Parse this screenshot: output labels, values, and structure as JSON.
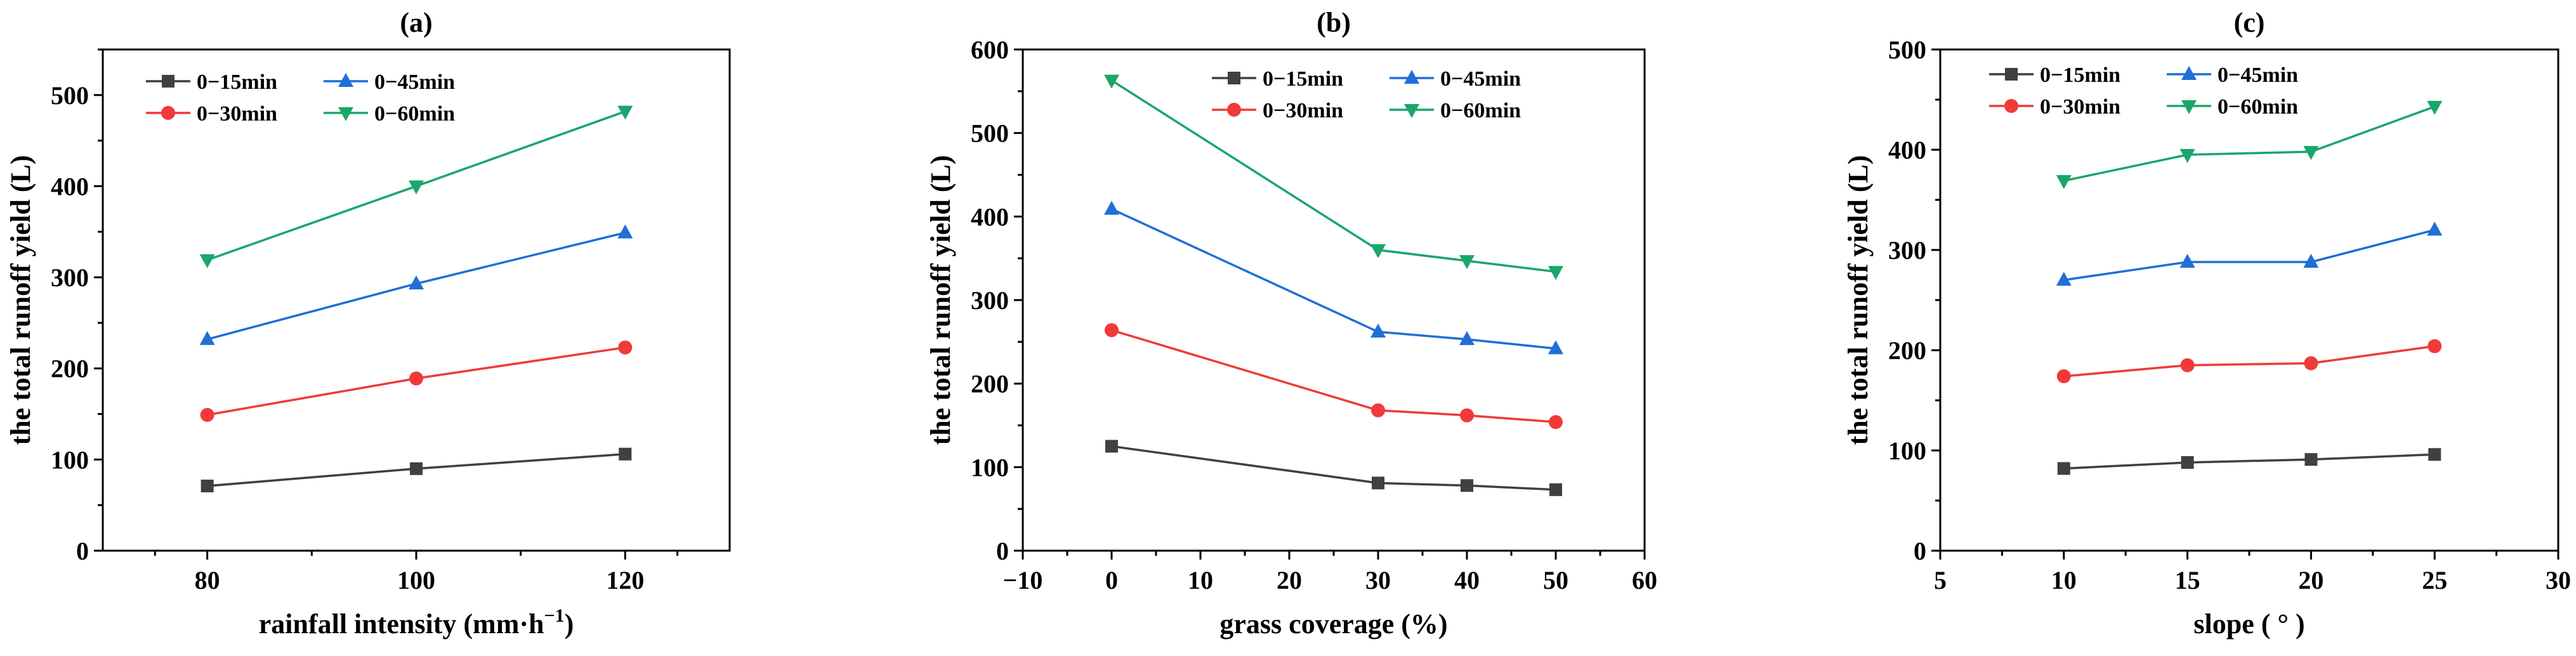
{
  "chart_data": [
    {
      "type": "line",
      "title": "(a)",
      "xlabel": "rainfall intensity (mm·h",
      "xlabel_sup": "−1",
      "xlabel_end": ")",
      "ylabel": "the total runoff yield (L)",
      "xlim": [
        70,
        130
      ],
      "ylim": [
        0,
        550
      ],
      "xticks": [
        80,
        100,
        120
      ],
      "yticks": [
        0,
        100,
        200,
        300,
        400,
        500
      ],
      "x": [
        80,
        100,
        120
      ],
      "series": [
        {
          "name": "0−15min",
          "values": [
            71,
            90,
            106
          ]
        },
        {
          "name": "0−30min",
          "values": [
            149,
            189,
            223
          ]
        },
        {
          "name": "0−45min",
          "values": [
            232,
            293,
            349
          ]
        },
        {
          "name": "0−60min",
          "values": [
            319,
            400,
            482
          ]
        }
      ],
      "legend": "top-left"
    },
    {
      "type": "line",
      "title": "(b)",
      "xlabel": "grass coverage (%)",
      "xlabel_sup": "",
      "xlabel_end": "",
      "ylabel": "the total runoff yield (L)",
      "xlim": [
        -10,
        60
      ],
      "ylim": [
        0,
        600
      ],
      "xticks": [
        -10,
        0,
        10,
        20,
        30,
        40,
        50,
        60
      ],
      "xtick_labels": [
        "−10",
        "0",
        "10",
        "20",
        "30",
        "40",
        "50",
        "60"
      ],
      "yticks": [
        0,
        100,
        200,
        300,
        400,
        500,
        600
      ],
      "x": [
        0,
        30,
        40,
        50
      ],
      "series": [
        {
          "name": "0−15min",
          "values": [
            125,
            81,
            78,
            73
          ]
        },
        {
          "name": "0−30min",
          "values": [
            264,
            168,
            162,
            154
          ]
        },
        {
          "name": "0−45min",
          "values": [
            409,
            262,
            253,
            242
          ]
        },
        {
          "name": "0−60min",
          "values": [
            563,
            360,
            347,
            334
          ]
        }
      ],
      "legend": "top-right"
    },
    {
      "type": "line",
      "title": "(c)",
      "xlabel": "slope ( ° )",
      "xlabel_sup": "",
      "xlabel_end": "",
      "ylabel": "the total runoff yield (L)",
      "xlim": [
        5,
        30
      ],
      "ylim": [
        0,
        500
      ],
      "xticks": [
        5,
        10,
        15,
        20,
        25,
        30
      ],
      "yticks": [
        0,
        100,
        200,
        300,
        400,
        500
      ],
      "x": [
        10,
        15,
        20,
        25
      ],
      "series": [
        {
          "name": "0−15min",
          "values": [
            82,
            88,
            91,
            96
          ]
        },
        {
          "name": "0−30min",
          "values": [
            174,
            185,
            187,
            204
          ]
        },
        {
          "name": "0−45min",
          "values": [
            270,
            288,
            288,
            320
          ]
        },
        {
          "name": "0−60min",
          "values": [
            369,
            395,
            398,
            443
          ]
        }
      ],
      "legend": "top-left"
    }
  ],
  "series_style": [
    {
      "color": "#404040",
      "marker": "square"
    },
    {
      "color": "#f03a3a",
      "marker": "circle"
    },
    {
      "color": "#1f6fd6",
      "marker": "triangle-up"
    },
    {
      "color": "#1aa66a",
      "marker": "triangle-down"
    }
  ]
}
